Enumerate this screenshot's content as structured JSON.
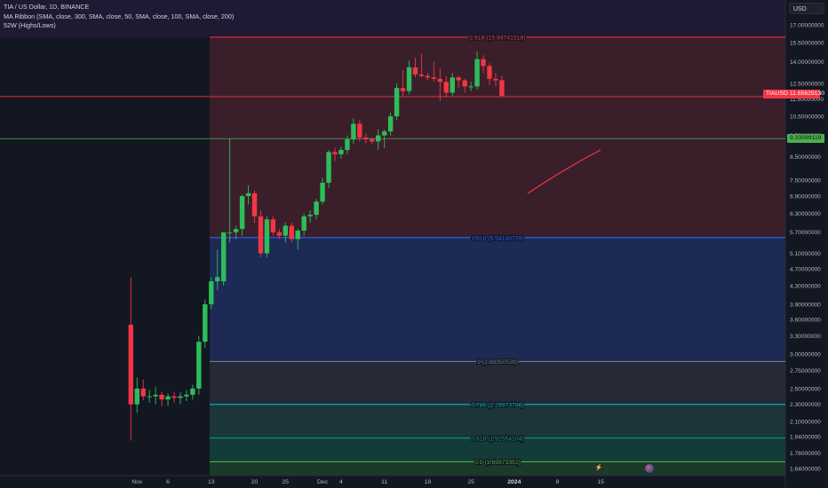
{
  "header": {
    "symbol_line": "TIA / US Dollar, 1D, BINANCE",
    "ma_line": "MA Ribbon (SMA, close, 300, SMA, close, 50, SMA, close, 100, SMA, close, 200)",
    "w52_line": "52W (Highs/Lows)"
  },
  "currency_button": "USD",
  "price_tags": {
    "current_symbol": "TIAUSD",
    "current_value": "11.65629130",
    "high_value": "9.33599119"
  },
  "bottom_icons": [
    "lightning-icon",
    "flag-icon"
  ],
  "colors": {
    "up": "#089981",
    "down": "#f23645",
    "fib_2618": "#f23645",
    "fib_1618": "#2962ff",
    "fib_1": "#787b86",
    "fib_0786": "#00bcd4",
    "fib_0618": "#089981",
    "fib_05": "#4caf50"
  },
  "chart_data": {
    "type": "candlestick",
    "title": "TIA / US Dollar, 1D, BINANCE",
    "y_axis": {
      "scale": "log",
      "currency": "USD",
      "ticks": [
        "17.00000000",
        "15.50000000",
        "14.00000000",
        "12.50000000",
        "11.50000000",
        "10.50000000",
        "9.50000000",
        "8.50000000",
        "7.50000000",
        "6.90000000",
        "6.30000000",
        "5.70000000",
        "5.10000000",
        "4.70000000",
        "4.30000000",
        "3.90000000",
        "3.60000000",
        "3.30000000",
        "3.00000000",
        "2.75000000",
        "2.50000000",
        "2.30000000",
        "2.10000000",
        "1.94000000",
        "1.78000000",
        "1.64000000"
      ]
    },
    "x_axis": {
      "ticks": [
        "Nov",
        "6",
        "13",
        "20",
        "25",
        "Dec",
        "4",
        "11",
        "18",
        "25",
        "2024",
        "8",
        "15"
      ]
    },
    "fib_levels": [
      {
        "label": "2.618 (15.94741518)",
        "value": 15.94741518,
        "color_key": "fib_2618"
      },
      {
        "label": "1.618 (5.54148739)",
        "value": 5.54148739,
        "color_key": "fib_1618"
      },
      {
        "label": "1 (2.88350528)",
        "value": 2.88350528,
        "color_key": "fib_1"
      },
      {
        "label": "0.786 (2.29973786)",
        "value": 2.29973786,
        "color_key": "fib_0786"
      },
      {
        "label": "0.618 (1.92554104)",
        "value": 1.92554104,
        "color_key": "fib_0618"
      },
      {
        "label": "0.5 (1.69973352)",
        "value": 1.69973352,
        "color_key": "fib_05"
      }
    ],
    "horizontal_lines": [
      {
        "value": 11.6562913,
        "color_key": "down"
      },
      {
        "value": 9.33599119,
        "color_key": "fib_05"
      }
    ],
    "start_date": "2023-10-31",
    "candles": [
      [
        3.5,
        4.5,
        1.9,
        2.3
      ],
      [
        2.3,
        2.65,
        2.2,
        2.5
      ],
      [
        2.5,
        2.62,
        2.35,
        2.4
      ],
      [
        2.4,
        2.48,
        2.32,
        2.4
      ],
      [
        2.4,
        2.52,
        2.3,
        2.42
      ],
      [
        2.42,
        2.46,
        2.28,
        2.36
      ],
      [
        2.36,
        2.44,
        2.28,
        2.4
      ],
      [
        2.4,
        2.46,
        2.32,
        2.38
      ],
      [
        2.38,
        2.45,
        2.3,
        2.4
      ],
      [
        2.4,
        2.48,
        2.34,
        2.42
      ],
      [
        2.42,
        2.55,
        2.36,
        2.5
      ],
      [
        2.5,
        3.3,
        2.42,
        3.2
      ],
      [
        3.2,
        4.0,
        3.1,
        3.9
      ],
      [
        3.9,
        4.5,
        3.8,
        4.4
      ],
      [
        4.4,
        5.2,
        4.2,
        4.5
      ],
      [
        4.4,
        5.7,
        4.3,
        5.7
      ],
      [
        5.7,
        9.35,
        5.4,
        5.7
      ],
      [
        5.7,
        5.9,
        5.5,
        5.8
      ],
      [
        5.8,
        6.95,
        5.6,
        6.9
      ],
      [
        6.9,
        7.3,
        6.6,
        7.0
      ],
      [
        7.0,
        7.1,
        6.0,
        6.2
      ],
      [
        6.2,
        6.4,
        5.0,
        5.1
      ],
      [
        5.1,
        6.2,
        5.0,
        6.1
      ],
      [
        6.1,
        6.2,
        5.6,
        5.7
      ],
      [
        5.7,
        5.8,
        5.5,
        5.6
      ],
      [
        5.6,
        6.0,
        5.4,
        5.9
      ],
      [
        5.9,
        6.0,
        5.4,
        5.5
      ],
      [
        5.5,
        5.8,
        5.2,
        5.75
      ],
      [
        5.75,
        6.3,
        5.6,
        6.2
      ],
      [
        6.2,
        6.4,
        6.0,
        6.25
      ],
      [
        6.25,
        6.8,
        6.1,
        6.7
      ],
      [
        6.7,
        7.6,
        6.6,
        7.4
      ],
      [
        7.4,
        8.8,
        7.2,
        8.7
      ],
      [
        8.7,
        8.9,
        8.3,
        8.6
      ],
      [
        8.6,
        8.95,
        8.4,
        8.8
      ],
      [
        8.8,
        9.5,
        8.6,
        9.3
      ],
      [
        9.3,
        10.4,
        9.1,
        10.1
      ],
      [
        10.1,
        10.3,
        9.2,
        9.4
      ],
      [
        9.4,
        9.6,
        9.1,
        9.3
      ],
      [
        9.3,
        9.4,
        9.1,
        9.2
      ],
      [
        9.2,
        9.8,
        8.8,
        9.5
      ],
      [
        9.5,
        9.8,
        8.9,
        9.7
      ],
      [
        9.7,
        10.7,
        9.5,
        10.5
      ],
      [
        10.5,
        12.5,
        10.3,
        12.2
      ],
      [
        12.2,
        13.4,
        11.7,
        12.0
      ],
      [
        12.0,
        14.1,
        11.8,
        13.6
      ],
      [
        13.6,
        14.3,
        12.9,
        13.1
      ],
      [
        13.1,
        14.6,
        12.9,
        13.0
      ],
      [
        13.0,
        13.2,
        12.7,
        12.9
      ],
      [
        12.9,
        14.0,
        12.6,
        12.8
      ],
      [
        12.8,
        13.5,
        11.4,
        12.6
      ],
      [
        12.6,
        13.0,
        11.6,
        11.9
      ],
      [
        11.9,
        13.2,
        11.7,
        12.9
      ],
      [
        12.9,
        13.0,
        12.2,
        12.7
      ],
      [
        12.7,
        12.8,
        11.9,
        12.3
      ],
      [
        12.3,
        12.6,
        12.0,
        12.3
      ],
      [
        12.3,
        14.8,
        12.1,
        14.2
      ],
      [
        14.2,
        14.5,
        13.2,
        13.7
      ],
      [
        13.7,
        13.9,
        12.4,
        12.8
      ],
      [
        12.8,
        13.2,
        12.3,
        12.7
      ],
      [
        12.7,
        13.0,
        11.7,
        11.7
      ]
    ]
  }
}
